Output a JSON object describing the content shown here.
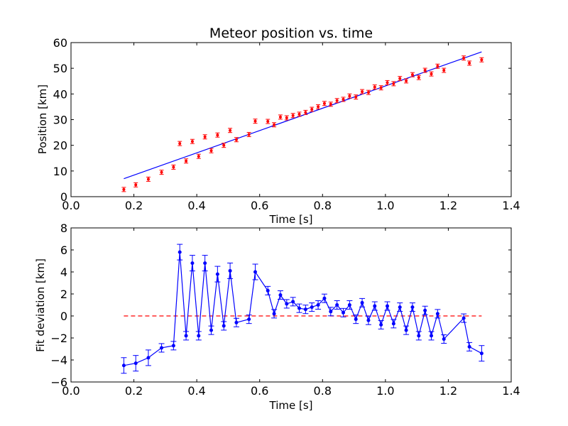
{
  "colors": {
    "points": "#ff0000",
    "fit": "#0000ff",
    "zero": "#ff0000"
  },
  "chart_data": [
    {
      "type": "scatter",
      "title": "Meteor position vs. time",
      "xlabel": "Time [s]",
      "ylabel": "Position [km]",
      "xlim": [
        0.0,
        1.4
      ],
      "ylim": [
        0,
        60
      ],
      "xticks": [
        "0.0",
        "0.2",
        "0.4",
        "0.6",
        "0.8",
        "1.0",
        "1.2",
        "1.4"
      ],
      "yticks": [
        "0",
        "10",
        "20",
        "30",
        "40",
        "50",
        "60"
      ],
      "series": [
        {
          "style": "red points with error bars",
          "points": [
            [
              0.168,
              2.8
            ],
            [
              0.206,
              4.6
            ],
            [
              0.246,
              6.8
            ],
            [
              0.288,
              9.5
            ],
            [
              0.326,
              11.5
            ],
            [
              0.346,
              20.7
            ],
            [
              0.366,
              13.9
            ],
            [
              0.386,
              21.5
            ],
            [
              0.406,
              15.7
            ],
            [
              0.426,
              23.3
            ],
            [
              0.446,
              17.9
            ],
            [
              0.466,
              24.0
            ],
            [
              0.486,
              20.0
            ],
            [
              0.506,
              25.8
            ],
            [
              0.526,
              22.2
            ],
            [
              0.566,
              24.2
            ],
            [
              0.586,
              29.4
            ],
            [
              0.626,
              29.3
            ],
            [
              0.646,
              28.0
            ],
            [
              0.666,
              31.0
            ],
            [
              0.686,
              30.7
            ],
            [
              0.706,
              31.6
            ],
            [
              0.726,
              32.1
            ],
            [
              0.746,
              32.8
            ],
            [
              0.766,
              34.0
            ],
            [
              0.786,
              35.0
            ],
            [
              0.806,
              36.3
            ],
            [
              0.826,
              36.0
            ],
            [
              0.846,
              37.4
            ],
            [
              0.866,
              37.9
            ],
            [
              0.886,
              39.2
            ],
            [
              0.906,
              38.8
            ],
            [
              0.926,
              40.9
            ],
            [
              0.946,
              40.6
            ],
            [
              0.966,
              42.7
            ],
            [
              0.986,
              42.4
            ],
            [
              1.006,
              44.4
            ],
            [
              1.026,
              44.0
            ],
            [
              1.046,
              46.0
            ],
            [
              1.066,
              45.1
            ],
            [
              1.086,
              47.5
            ],
            [
              1.106,
              46.4
            ],
            [
              1.126,
              49.2
            ],
            [
              1.146,
              47.8
            ],
            [
              1.166,
              50.8
            ],
            [
              1.186,
              49.2
            ],
            [
              1.249,
              54.0
            ],
            [
              1.267,
              52.0
            ],
            [
              1.306,
              53.3
            ]
          ]
        },
        {
          "style": "blue fit line",
          "points": [
            [
              0.168,
              7.0
            ],
            [
              1.306,
              56.4
            ]
          ]
        }
      ]
    },
    {
      "type": "line",
      "xlabel": "Time [s]",
      "ylabel": "Fit deviation [km]",
      "xlim": [
        0.0,
        1.4
      ],
      "ylim": [
        -6,
        8
      ],
      "xticks": [
        "0.0",
        "0.2",
        "0.4",
        "0.6",
        "0.8",
        "1.0",
        "1.2",
        "1.4"
      ],
      "yticks": [
        "−6",
        "−4",
        "−2",
        "0",
        "2",
        "4",
        "6",
        "8"
      ],
      "series": [
        {
          "style": "blue line with markers and error bars",
          "points": [
            [
              0.168,
              -4.5
            ],
            [
              0.206,
              -4.3
            ],
            [
              0.246,
              -3.8
            ],
            [
              0.288,
              -2.9
            ],
            [
              0.326,
              -2.7
            ],
            [
              0.346,
              5.8
            ],
            [
              0.366,
              -1.8
            ],
            [
              0.386,
              4.8
            ],
            [
              0.406,
              -1.8
            ],
            [
              0.426,
              4.8
            ],
            [
              0.446,
              -1.3
            ],
            [
              0.466,
              3.8
            ],
            [
              0.486,
              -0.9
            ],
            [
              0.506,
              4.1
            ],
            [
              0.526,
              -0.6
            ],
            [
              0.566,
              -0.3
            ],
            [
              0.586,
              4.0
            ],
            [
              0.626,
              2.3
            ],
            [
              0.646,
              0.2
            ],
            [
              0.666,
              1.9
            ],
            [
              0.686,
              1.1
            ],
            [
              0.706,
              1.3
            ],
            [
              0.726,
              0.7
            ],
            [
              0.746,
              0.6
            ],
            [
              0.766,
              0.8
            ],
            [
              0.786,
              1.0
            ],
            [
              0.806,
              1.6
            ],
            [
              0.826,
              0.4
            ],
            [
              0.846,
              1.0
            ],
            [
              0.866,
              0.3
            ],
            [
              0.886,
              1.0
            ],
            [
              0.906,
              -0.3
            ],
            [
              0.926,
              1.2
            ],
            [
              0.946,
              -0.4
            ],
            [
              0.966,
              0.9
            ],
            [
              0.986,
              -0.8
            ],
            [
              1.006,
              0.9
            ],
            [
              1.026,
              -0.7
            ],
            [
              1.046,
              0.8
            ],
            [
              1.066,
              -1.3
            ],
            [
              1.086,
              0.8
            ],
            [
              1.106,
              -1.8
            ],
            [
              1.126,
              0.5
            ],
            [
              1.146,
              -1.8
            ],
            [
              1.166,
              0.2
            ],
            [
              1.186,
              -2.1
            ],
            [
              1.249,
              -0.2
            ],
            [
              1.267,
              -2.8
            ],
            [
              1.306,
              -3.4
            ]
          ]
        },
        {
          "style": "red dashed zero line",
          "points": [
            [
              0.168,
              0
            ],
            [
              1.306,
              0
            ]
          ]
        }
      ]
    }
  ]
}
